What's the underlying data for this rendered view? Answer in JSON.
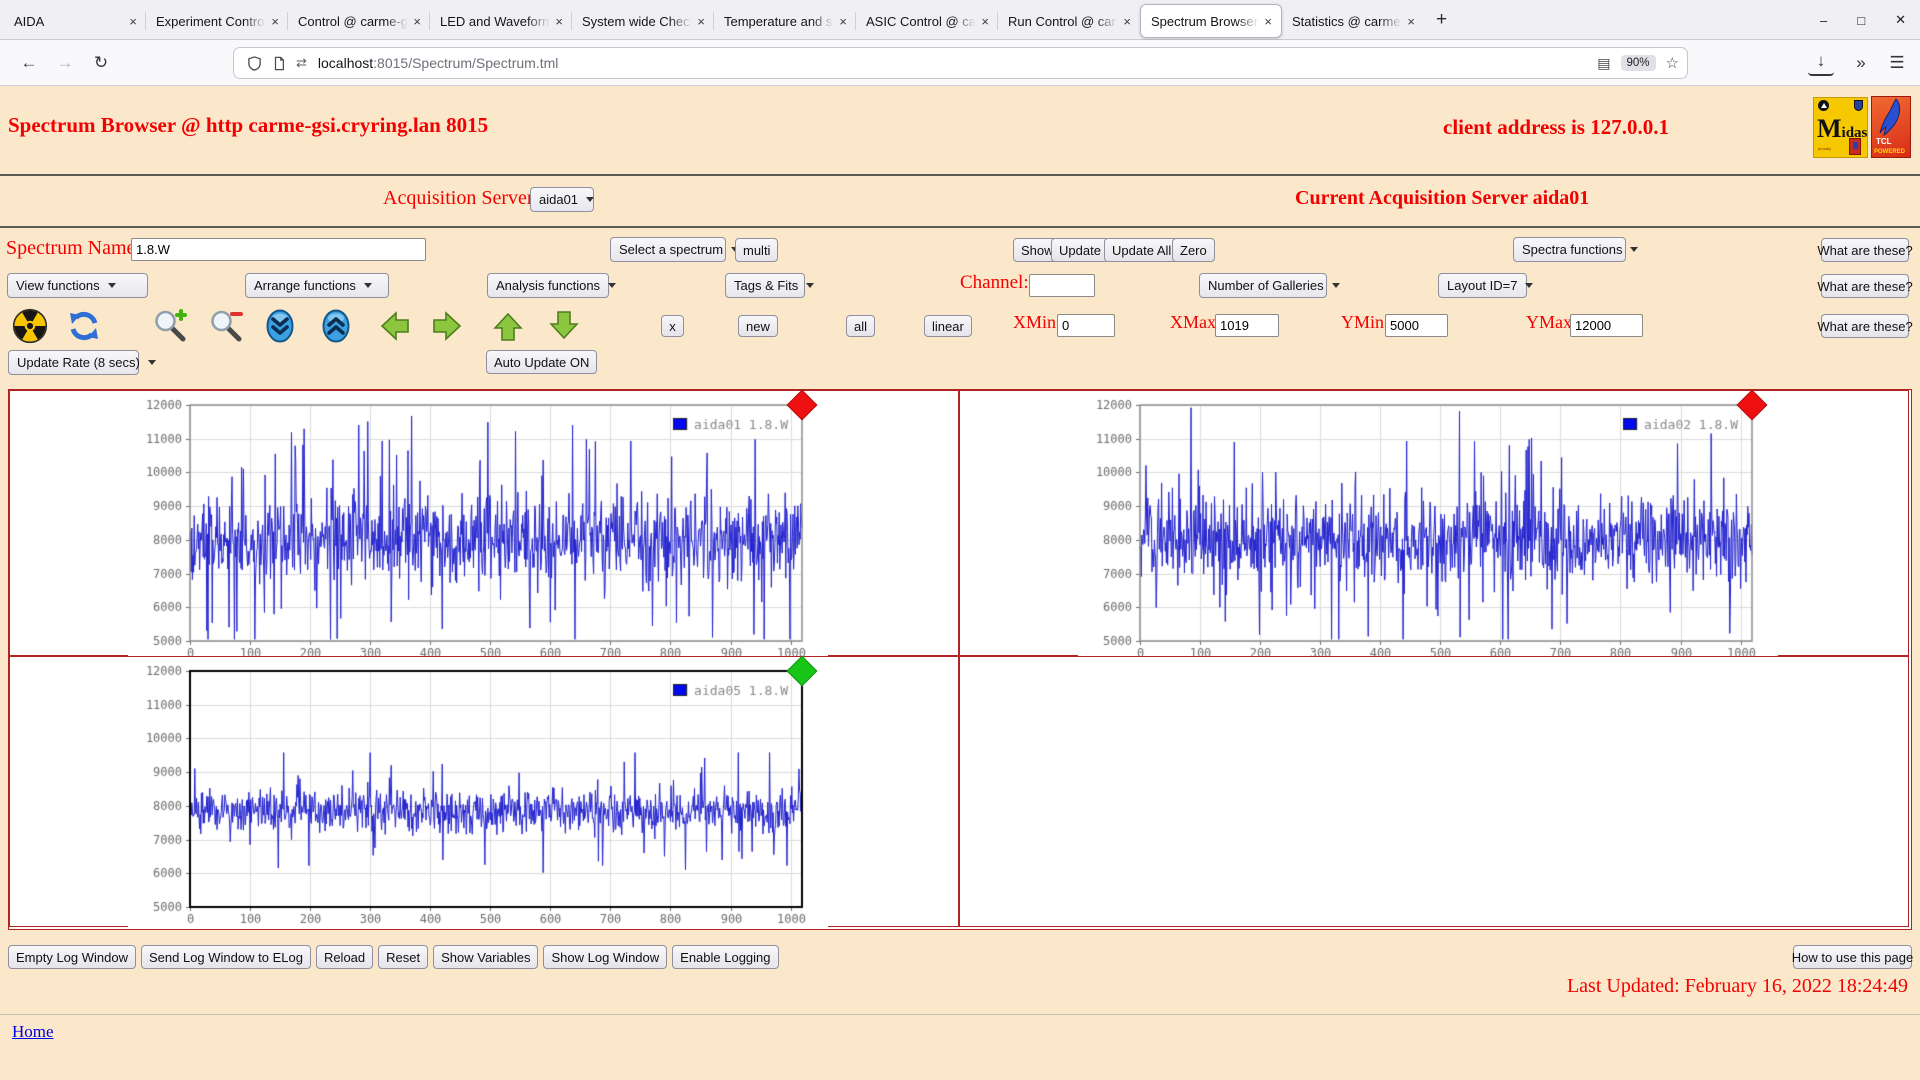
{
  "browser": {
    "tabs": [
      {
        "label": "AIDA",
        "active": false
      },
      {
        "label": "Experiment Control @",
        "active": false
      },
      {
        "label": "Control @ carme-gsi",
        "active": false
      },
      {
        "label": "LED and Waveform co",
        "active": false
      },
      {
        "label": "System wide Checks (",
        "active": false
      },
      {
        "label": "Temperature and stat",
        "active": false
      },
      {
        "label": "ASIC Control @ carme",
        "active": false
      },
      {
        "label": "Run Control @ carme",
        "active": false
      },
      {
        "label": "Spectrum Browser @",
        "active": true
      },
      {
        "label": "Statistics @ carme-g",
        "active": false
      }
    ],
    "tab_close_glyph": "×",
    "new_tab_glyph": "+",
    "window": {
      "minimize": "–",
      "maximize": "□",
      "close": "✕"
    },
    "nav": {
      "back": "←",
      "forward": "→",
      "reload": "↻",
      "download": "↓",
      "overflow": "»",
      "menu": "☰"
    },
    "url": {
      "host": "localhost",
      "path": ":8015/Spectrum/Spectrum.tml",
      "site_info": "⇄",
      "reader": "▤",
      "zoom_badge": "90%",
      "star": "☆"
    }
  },
  "page": {
    "header": {
      "title": "Spectrum Browser @ http carme-gsi.cryring.lan 8015",
      "client": "client address is 127.0.0.1"
    },
    "logos": {
      "midas_m": "M",
      "midas_rest": "idas",
      "midas_tiny": "proudly",
      "tcl_line1": "TCL",
      "tcl_line2": "POWERED"
    },
    "acquisition": {
      "label": "Acquisition Servers",
      "server_value": "aida01",
      "current": "Current Acquisition Server aida01"
    },
    "spectrum_row": {
      "name_label": "Spectrum Name:",
      "name_value": "1.8.W",
      "select_spectrum": "Select a spectrum",
      "multi": "multi",
      "show": "Show",
      "update": "Update",
      "update_all": "Update All",
      "zero": "Zero",
      "spectra_functions": "Spectra functions",
      "what": "What are these?"
    },
    "functions_row": {
      "view": "View functions",
      "arrange": "Arrange functions",
      "analysis": "Analysis functions",
      "tags": "Tags & Fits",
      "channel_label": "Channel:",
      "channel_value": "",
      "galleries": "Number of Galleries",
      "layout": "Layout ID=7",
      "what": "What are these?"
    },
    "range_row": {
      "close": "x",
      "new": "new",
      "all": "all",
      "linear": "linear",
      "xmin_label": "XMin",
      "xmin_value": "0",
      "xmax_label": "XMax",
      "xmax_value": "1019",
      "ymin_label": "YMin",
      "ymin_value": "5000",
      "ymax_label": "YMax",
      "ymax_value": "12000",
      "what": "What are these?"
    },
    "update_row": {
      "rate": "Update Rate (8 secs)",
      "auto": "Auto Update ON"
    },
    "footer": {
      "buttons": [
        "Empty Log Window",
        "Send Log Window to ELog",
        "Reload",
        "Reset",
        "Show Variables",
        "Show Log Window",
        "Enable Logging"
      ],
      "help": "How to use this page",
      "last_updated": "Last Updated: February 16, 2022 18:24:49",
      "home": "Home"
    }
  },
  "chart_data": [
    {
      "type": "line",
      "legend": "aida01 1.8.W",
      "line_color": "#2323cf",
      "legend_swatch_color": "#0008f0",
      "marker_color": "#ee1010",
      "plot_border_color": "#8c8c8c",
      "plot_border_width": 1.5,
      "xlim": [
        0,
        1019
      ],
      "ylim": [
        5000,
        12000
      ],
      "x_ticks": [
        0,
        100,
        200,
        300,
        400,
        500,
        600,
        700,
        800,
        900,
        1000
      ],
      "y_ticks": [
        5000,
        6000,
        7000,
        8000,
        9000,
        10000,
        11000,
        12000
      ],
      "grid": true,
      "synth": {
        "seed": 101,
        "points": 1020,
        "baseline": 8050,
        "sigma": 620,
        "spike_prob": 0.1,
        "spike_min": 700,
        "spike_max": 3300,
        "clamp": [
          5050,
          11920
        ]
      }
    },
    {
      "type": "line",
      "legend": "aida02 1.8.W",
      "line_color": "#2323cf",
      "legend_swatch_color": "#0008f0",
      "marker_color": "#ee1010",
      "plot_border_color": "#8c8c8c",
      "plot_border_width": 1.5,
      "xlim": [
        0,
        1019
      ],
      "ylim": [
        5000,
        12000
      ],
      "x_ticks": [
        0,
        100,
        200,
        300,
        400,
        500,
        600,
        700,
        800,
        900,
        1000
      ],
      "y_ticks": [
        5000,
        6000,
        7000,
        8000,
        9000,
        10000,
        11000,
        12000
      ],
      "grid": true,
      "synth": {
        "seed": 202,
        "points": 1020,
        "baseline": 8050,
        "sigma": 620,
        "spike_prob": 0.1,
        "spike_min": 700,
        "spike_max": 3300,
        "clamp": [
          5050,
          11920
        ]
      }
    },
    {
      "type": "line",
      "legend": "aida05 1.8.W",
      "line_color": "#2323cf",
      "legend_swatch_color": "#0008f0",
      "marker_color": "#17c517",
      "plot_border_color": "#000000",
      "plot_border_width": 2,
      "xlim": [
        0,
        1019
      ],
      "ylim": [
        5000,
        12000
      ],
      "x_ticks": [
        0,
        100,
        200,
        300,
        400,
        500,
        600,
        700,
        800,
        900,
        1000
      ],
      "y_ticks": [
        5000,
        6000,
        7000,
        8000,
        9000,
        10000,
        11000,
        12000
      ],
      "grid": true,
      "synth": {
        "seed": 505,
        "points": 1020,
        "baseline": 7830,
        "sigma": 300,
        "spike_prob": 0.06,
        "spike_min": 350,
        "spike_max": 1650,
        "clamp": [
          6020,
          9580
        ]
      }
    }
  ]
}
